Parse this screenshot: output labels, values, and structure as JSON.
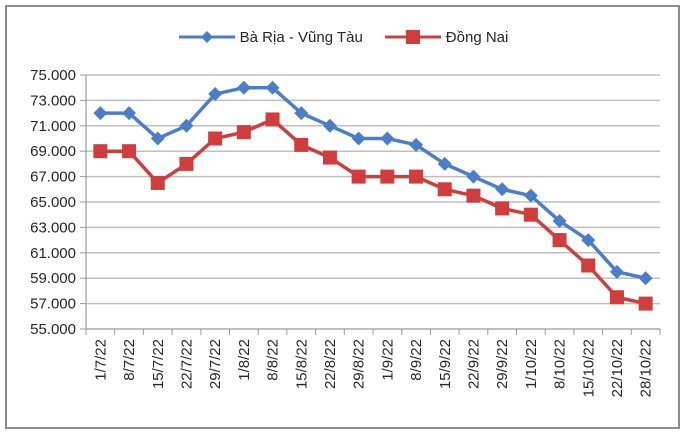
{
  "chart_data": {
    "type": "line",
    "title": "",
    "xlabel": "",
    "ylabel": "",
    "categories": [
      "1/7/22",
      "8/7/22",
      "15/7/22",
      "22/7/22",
      "29/7/22",
      "1/8/22",
      "8/8/22",
      "15/8/22",
      "22/8/22",
      "29/8/22",
      "1/9/22",
      "8/9/22",
      "15/9/22",
      "22/9/22",
      "29/9/22",
      "1/10/22",
      "8/10/22",
      "15/10/22",
      "22/10/22",
      "28/10/22"
    ],
    "series": [
      {
        "name": "Bà Rịa - Vũng Tàu",
        "color": "#4A7EC8",
        "marker": "diamond",
        "values": [
          72000,
          72000,
          70000,
          71000,
          73500,
          74000,
          74000,
          72000,
          71000,
          70000,
          70000,
          69500,
          68000,
          67000,
          66000,
          65500,
          63500,
          62000,
          59500,
          59000
        ]
      },
      {
        "name": "Đồng Nai",
        "color": "#CF3D3D",
        "marker": "square",
        "values": [
          69000,
          69000,
          66500,
          68000,
          70000,
          70500,
          71500,
          69500,
          68500,
          67000,
          67000,
          67000,
          66000,
          65500,
          64500,
          64000,
          62000,
          60000,
          57500,
          57000
        ]
      }
    ],
    "ylim": [
      55000,
      75000
    ],
    "yticks": [
      55000,
      57000,
      59000,
      61000,
      63000,
      65000,
      67000,
      69000,
      71000,
      73000,
      75000
    ],
    "ytick_labels": [
      "55.000",
      "57.000",
      "59.000",
      "61.000",
      "63.000",
      "65.000",
      "67.000",
      "69.000",
      "71.000",
      "73.000",
      "75.000"
    ],
    "grid": true,
    "legend_position": "top"
  }
}
